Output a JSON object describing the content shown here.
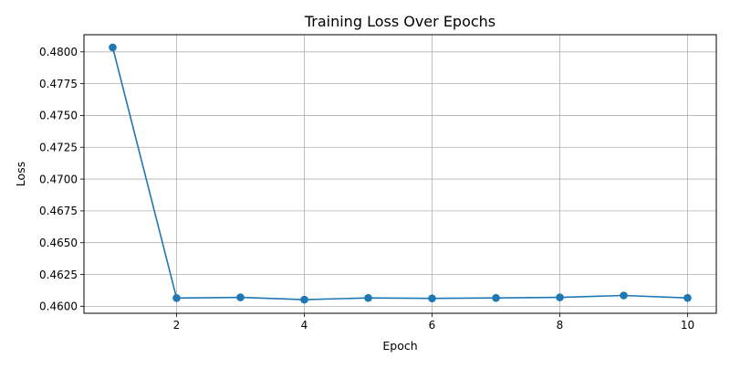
{
  "chart_data": {
    "type": "line",
    "title": "Training Loss Over Epochs",
    "xlabel": "Epoch",
    "ylabel": "Loss",
    "x": [
      1,
      2,
      3,
      4,
      5,
      6,
      7,
      8,
      9,
      10
    ],
    "series": [
      {
        "values": [
          0.48035,
          0.46065,
          0.4607,
          0.46052,
          0.46066,
          0.46062,
          0.46066,
          0.4607,
          0.46085,
          0.46066
        ],
        "color": "#1f77b4",
        "marker": "circle"
      }
    ],
    "xlim": [
      0.55,
      10.45
    ],
    "ylim": [
      0.45945,
      0.48135
    ],
    "xticks": [
      2,
      4,
      6,
      8,
      10
    ],
    "xtick_labels": [
      "2",
      "4",
      "6",
      "8",
      "10"
    ],
    "yticks": [
      0.46,
      0.4625,
      0.465,
      0.4675,
      0.47,
      0.4725,
      0.475,
      0.4775,
      0.48
    ],
    "ytick_labels": [
      "0.4600",
      "0.4625",
      "0.4650",
      "0.4675",
      "0.4700",
      "0.4725",
      "0.4750",
      "0.4775",
      "0.4800"
    ],
    "grid": true,
    "legend": "none"
  }
}
